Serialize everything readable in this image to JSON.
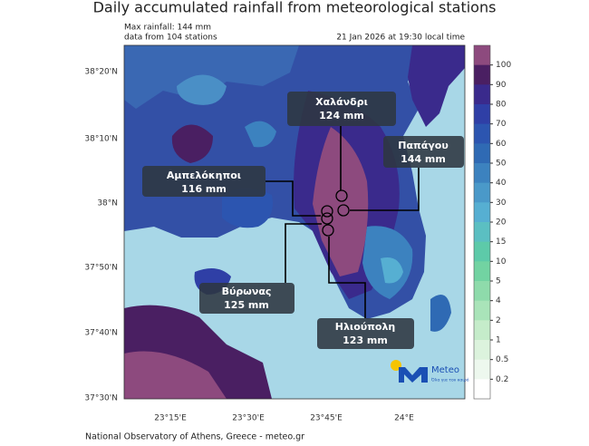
{
  "header": {
    "title": "Daily accumulated rainfall from meteorological stations",
    "max_rainfall": "Max rainfall: 144 mm",
    "stations": "data from 104 stations",
    "timestamp": "21 Jan 2026 at 19:30 local time"
  },
  "map": {
    "lat_labels": [
      "38°20'N",
      "38°10'N",
      "38°N",
      "37°50'N",
      "37°40'N",
      "37°30'N"
    ],
    "lon_labels": [
      "23°15'E",
      "23°30'E",
      "23°45'E",
      "24°E"
    ],
    "callouts": [
      {
        "name": "Χαλάνδρι",
        "amount": "124 mm"
      },
      {
        "name": "Παπάγου",
        "amount": "144 mm"
      },
      {
        "name": "Αμπελόκηποι",
        "amount": "116 mm"
      },
      {
        "name": "Βύρωνας",
        "amount": "125 mm"
      },
      {
        "name": "Ηλιούπολη",
        "amount": "123 mm"
      }
    ]
  },
  "colorbar": {
    "ticks": [
      100,
      90,
      80,
      70,
      60,
      50,
      40,
      30,
      20,
      15,
      10,
      5,
      4,
      2,
      1,
      0.5,
      0.2
    ],
    "colors": [
      "#8d4a7e",
      "#4a1f62",
      "#3a2a8c",
      "#2f3fa6",
      "#2c55b0",
      "#2f6ab4",
      "#3c82bf",
      "#4a99c9",
      "#56afd2",
      "#5bbfc2",
      "#5dcaa9",
      "#72d3a2",
      "#8edbab",
      "#a9e4b9",
      "#c5ecca",
      "#dcf3dd",
      "#edf8ee",
      "#ffffff"
    ]
  },
  "logo": {
    "brand": "Meteo",
    "tagline": "Όλα για τον καιρό"
  },
  "footer": "National Observatory of Athens, Greece - meteo.gr"
}
